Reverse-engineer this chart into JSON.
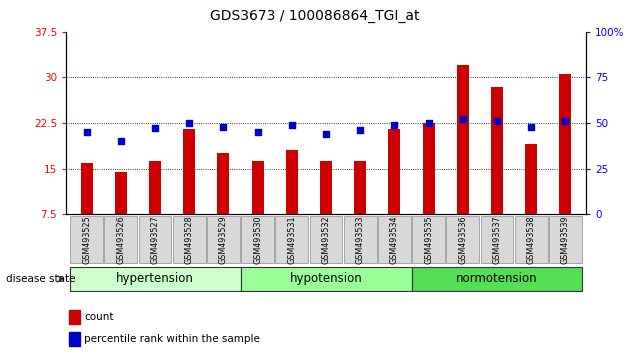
{
  "title": "GDS3673 / 100086864_TGI_at",
  "samples": [
    "GSM493525",
    "GSM493526",
    "GSM493527",
    "GSM493528",
    "GSM493529",
    "GSM493530",
    "GSM493531",
    "GSM493532",
    "GSM493533",
    "GSM493534",
    "GSM493535",
    "GSM493536",
    "GSM493537",
    "GSM493538",
    "GSM493539"
  ],
  "count_values": [
    16.0,
    14.5,
    16.2,
    21.5,
    17.5,
    16.2,
    18.0,
    16.3,
    16.2,
    21.5,
    22.5,
    32.0,
    28.5,
    19.0,
    30.5
  ],
  "percentile_values": [
    45,
    40,
    47,
    50,
    48,
    45,
    49,
    44,
    46,
    49,
    50,
    52,
    51,
    48,
    51
  ],
  "groups": [
    {
      "name": "hypertension",
      "start": 0,
      "end": 5,
      "color": "#ccffcc"
    },
    {
      "name": "hypotension",
      "start": 5,
      "end": 10,
      "color": "#99ff99"
    },
    {
      "name": "normotension",
      "start": 10,
      "end": 15,
      "color": "#55dd55"
    }
  ],
  "ylim_left": [
    7.5,
    37.5
  ],
  "ylim_right": [
    0,
    100
  ],
  "yticks_left": [
    7.5,
    15.0,
    22.5,
    30.0,
    37.5
  ],
  "yticks_right": [
    0,
    25,
    50,
    75,
    100
  ],
  "bar_color": "#cc0000",
  "dot_color": "#0000cc",
  "bar_width": 0.35,
  "background_color": "#ffffff",
  "title_fontsize": 10,
  "tick_fontsize": 7.5,
  "group_label_fontsize": 8.5
}
